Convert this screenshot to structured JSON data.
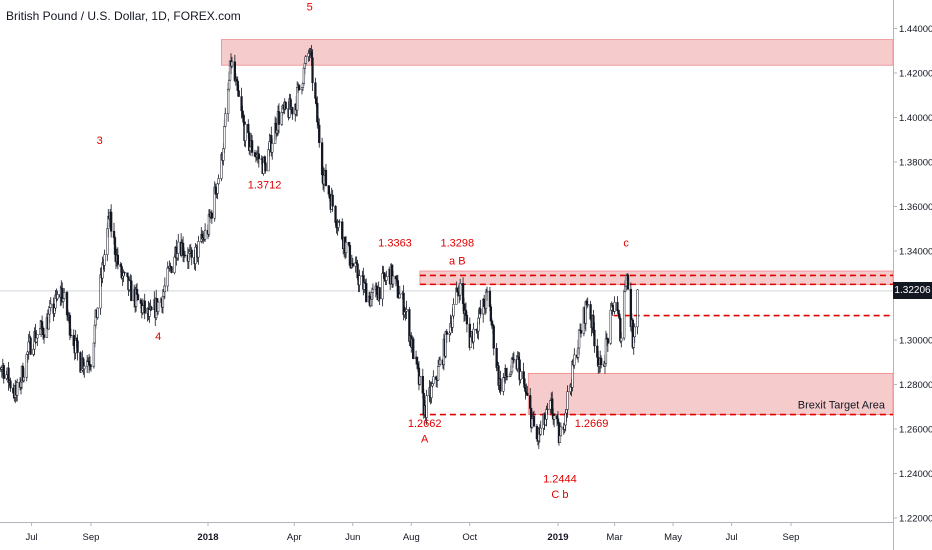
{
  "header": {
    "symbol_title": "British Pound / U.S. Dollar, 1D, FOREX.com"
  },
  "colors": {
    "annotation": "#e00000",
    "zone_fill": "#f4c2c2",
    "zone_edge": "#e88",
    "candle": "#131722",
    "grid": "#e1e3eb",
    "last_price_bg": "#131722"
  },
  "chart_data": {
    "type": "candlestick",
    "instrument": "GBPUSD",
    "timeframe": "1D",
    "x_tick_labels": [
      "Jul",
      "Sep",
      "2018",
      "Apr",
      "Jun",
      "Aug",
      "Oct",
      "2019",
      "Mar",
      "May",
      "Jul",
      "Sep"
    ],
    "y_tick_labels": [
      "1.44000",
      "1.42000",
      "1.40000",
      "1.38000",
      "1.36000",
      "1.34000",
      "1.32000",
      "1.30000",
      "1.28000",
      "1.26000",
      "1.24000",
      "1.22000"
    ],
    "ylim": [
      1.22,
      1.44
    ],
    "last_price": "1.32206",
    "close_path": [
      [
        "2017-05-15",
        1.292
      ],
      [
        "2017-06-01",
        1.288
      ],
      [
        "2017-06-15",
        1.275
      ],
      [
        "2017-07-01",
        1.3
      ],
      [
        "2017-07-15",
        1.306
      ],
      [
        "2017-08-01",
        1.322
      ],
      [
        "2017-08-20",
        1.29
      ],
      [
        "2017-09-01",
        1.292
      ],
      [
        "2017-09-20",
        1.355
      ],
      [
        "2017-10-01",
        1.33
      ],
      [
        "2017-10-15",
        1.32
      ],
      [
        "2017-11-01",
        1.31
      ],
      [
        "2017-11-15",
        1.32
      ],
      [
        "2017-12-01",
        1.345
      ],
      [
        "2017-12-15",
        1.335
      ],
      [
        "2018-01-01",
        1.35
      ],
      [
        "2018-01-15",
        1.38
      ],
      [
        "2018-01-25",
        1.425
      ],
      [
        "2018-02-10",
        1.39
      ],
      [
        "2018-03-01",
        1.378
      ],
      [
        "2018-03-15",
        1.4
      ],
      [
        "2018-04-01",
        1.405
      ],
      [
        "2018-04-17",
        1.43
      ],
      [
        "2018-05-01",
        1.375
      ],
      [
        "2018-05-15",
        1.355
      ],
      [
        "2018-06-01",
        1.333
      ],
      [
        "2018-06-20",
        1.318
      ],
      [
        "2018-07-10",
        1.33
      ],
      [
        "2018-07-25",
        1.315
      ],
      [
        "2018-08-15",
        1.268
      ],
      [
        "2018-09-01",
        1.29
      ],
      [
        "2018-09-20",
        1.325
      ],
      [
        "2018-10-01",
        1.3
      ],
      [
        "2018-10-20",
        1.32
      ],
      [
        "2018-11-01",
        1.28
      ],
      [
        "2018-11-20",
        1.29
      ],
      [
        "2018-12-10",
        1.255
      ],
      [
        "2018-12-25",
        1.27
      ],
      [
        "2019-01-03",
        1.255
      ],
      [
        "2019-01-20",
        1.295
      ],
      [
        "2019-02-01",
        1.318
      ],
      [
        "2019-02-15",
        1.285
      ],
      [
        "2019-03-01",
        1.318
      ],
      [
        "2019-03-08",
        1.302
      ],
      [
        "2019-03-13",
        1.333
      ],
      [
        "2019-03-20",
        1.3
      ],
      [
        "2019-03-25",
        1.322
      ]
    ],
    "zones": [
      {
        "y_top": 1.435,
        "y_bottom": 1.4235,
        "x_start": "2018-01-15"
      },
      {
        "y_top": 1.331,
        "y_bottom": 1.325,
        "x_start": "2018-08-10"
      },
      {
        "y_top": 1.285,
        "y_bottom": 1.2665,
        "x_start": "2018-12-01",
        "label": "Brexit Target Area"
      }
    ],
    "levels": [
      {
        "y": 1.311,
        "x_start": "2019-02-28"
      },
      {
        "y": 1.2665,
        "x_start": "2018-08-10"
      },
      {
        "y": 1.329,
        "x_start": "2018-08-10"
      },
      {
        "y": 1.325,
        "x_start": "2018-08-10"
      }
    ],
    "annotations": [
      {
        "text": "5",
        "x": "2018-04-17",
        "y": 1.448
      },
      {
        "text": "3",
        "x": "2017-09-10",
        "y": 1.388
      },
      {
        "text": "4",
        "x": "2017-11-10",
        "y": 1.3
      },
      {
        "text": "1.3712",
        "x": "2018-03-01",
        "y": 1.368
      },
      {
        "text": "1.3363",
        "x": "2018-07-15",
        "y": 1.342
      },
      {
        "text": "1.3298",
        "x": "2018-09-18",
        "y": 1.342
      },
      {
        "text": "a  B",
        "x": "2018-09-18",
        "y": 1.334
      },
      {
        "text": "c",
        "x": "2019-03-13",
        "y": 1.342
      },
      {
        "text": "1.2662",
        "x": "2018-08-15",
        "y": 1.261
      },
      {
        "text": "A",
        "x": "2018-08-15",
        "y": 1.254
      },
      {
        "text": "1.2669",
        "x": "2019-02-05",
        "y": 1.261
      },
      {
        "text": "1.2444",
        "x": "2019-01-03",
        "y": 1.236
      },
      {
        "text": "C  b",
        "x": "2019-01-03",
        "y": 1.229
      }
    ]
  }
}
